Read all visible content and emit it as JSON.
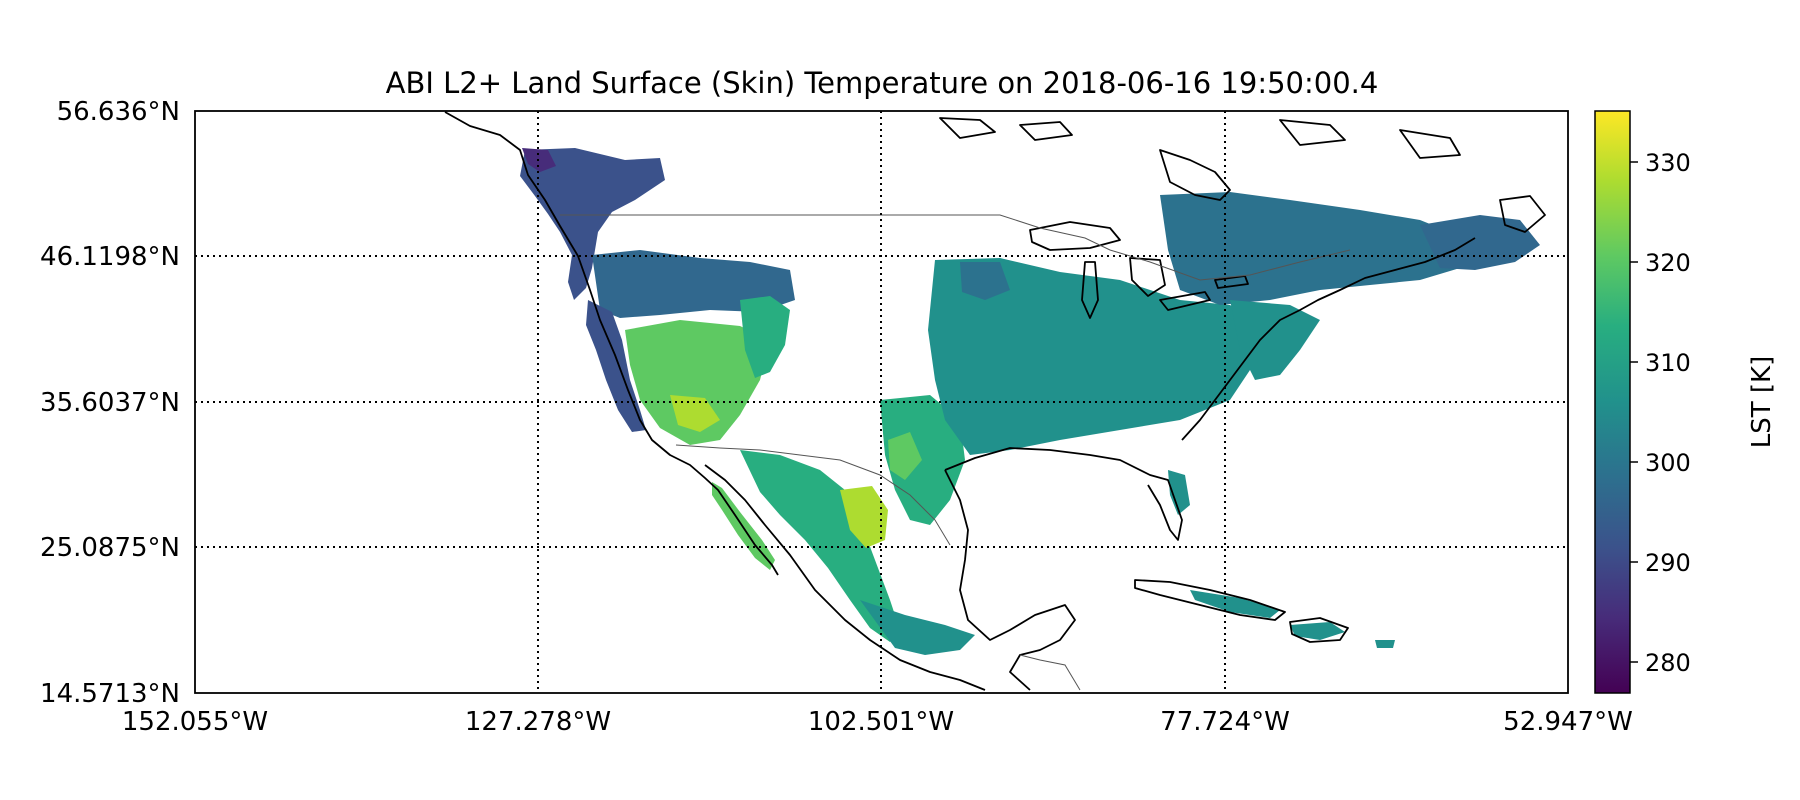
{
  "map": {
    "title": "ABI L2+ Land Surface (Skin) Temperature on 2018-06-16 19:50:00.4",
    "lat_ticks": [
      "56.636°N",
      "46.1198°N",
      "35.6037°N",
      "25.0875°N",
      "14.5713°N"
    ],
    "lon_ticks": [
      "152.055°W",
      "127.278°W",
      "102.501°W",
      "77.724°W",
      "52.947°W"
    ],
    "lat_range": [
      14.5713,
      56.636
    ],
    "lon_range": [
      -152.055,
      -52.947
    ],
    "gridlines": "dotted",
    "colormap": "viridis"
  },
  "colorbar": {
    "label": "LST [K]",
    "ticks": [
      "330",
      "320",
      "310",
      "300",
      "290",
      "280"
    ],
    "range": [
      276.5,
      334.5
    ],
    "colors": [
      "#440154",
      "#3b528b",
      "#21918c",
      "#5ec962",
      "#fde725"
    ]
  }
}
